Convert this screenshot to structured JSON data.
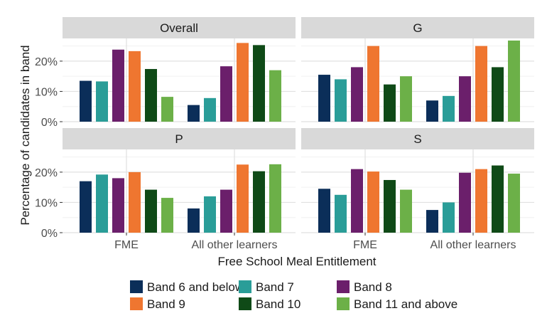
{
  "chart_data": {
    "type": "bar",
    "xlabel": "Free School Meal Entitlement",
    "ylabel": "Percentage of candidates in band",
    "ylim": [
      0,
      27.5
    ],
    "yticks": [
      0,
      10,
      20
    ],
    "ytick_labels": [
      "0%",
      "10%",
      "20%"
    ],
    "categories": [
      "FME",
      "All other learners"
    ],
    "legend": {
      "placement": "bottom",
      "entries": [
        "Band 6 and below",
        "Band 7",
        "Band 8",
        "Band 9",
        "Band 10",
        "Band 11 and above"
      ]
    },
    "colors": [
      "#0b2e59",
      "#2a9d98",
      "#6b1f6b",
      "#ef7630",
      "#0f4a17",
      "#6cb048"
    ],
    "grid": true,
    "panels": [
      {
        "title": "Overall",
        "series": [
          {
            "name": "Band 6 and below",
            "values": [
              13.5,
              5.5
            ]
          },
          {
            "name": "Band 7",
            "values": [
              13.3,
              7.8
            ]
          },
          {
            "name": "Band 8",
            "values": [
              23.8,
              18.3
            ]
          },
          {
            "name": "Band 9",
            "values": [
              23.3,
              26.0
            ]
          },
          {
            "name": "Band 10",
            "values": [
              17.4,
              25.3
            ]
          },
          {
            "name": "Band 11 and above",
            "values": [
              8.2,
              17.0
            ]
          }
        ]
      },
      {
        "title": "G",
        "series": [
          {
            "name": "Band 6 and below",
            "values": [
              15.5,
              7.0
            ]
          },
          {
            "name": "Band 7",
            "values": [
              14.0,
              8.5
            ]
          },
          {
            "name": "Band 8",
            "values": [
              18.0,
              15.0
            ]
          },
          {
            "name": "Band 9",
            "values": [
              25.0,
              25.0
            ]
          },
          {
            "name": "Band 10",
            "values": [
              12.3,
              18.0
            ]
          },
          {
            "name": "Band 11 and above",
            "values": [
              15.0,
              26.8
            ]
          }
        ]
      },
      {
        "title": "P",
        "series": [
          {
            "name": "Band 6 and below",
            "values": [
              17.0,
              8.0
            ]
          },
          {
            "name": "Band 7",
            "values": [
              19.2,
              12.0
            ]
          },
          {
            "name": "Band 8",
            "values": [
              18.0,
              14.2
            ]
          },
          {
            "name": "Band 9",
            "values": [
              20.0,
              22.5
            ]
          },
          {
            "name": "Band 10",
            "values": [
              14.2,
              20.3
            ]
          },
          {
            "name": "Band 11 and above",
            "values": [
              11.5,
              22.6
            ]
          }
        ]
      },
      {
        "title": "S",
        "series": [
          {
            "name": "Band 6 and below",
            "values": [
              14.5,
              7.5
            ]
          },
          {
            "name": "Band 7",
            "values": [
              12.5,
              10.0
            ]
          },
          {
            "name": "Band 8",
            "values": [
              21.0,
              19.8
            ]
          },
          {
            "name": "Band 9",
            "values": [
              20.2,
              21.0
            ]
          },
          {
            "name": "Band 10",
            "values": [
              17.4,
              22.2
            ]
          },
          {
            "name": "Band 11 and above",
            "values": [
              14.2,
              19.5
            ]
          }
        ]
      }
    ]
  }
}
